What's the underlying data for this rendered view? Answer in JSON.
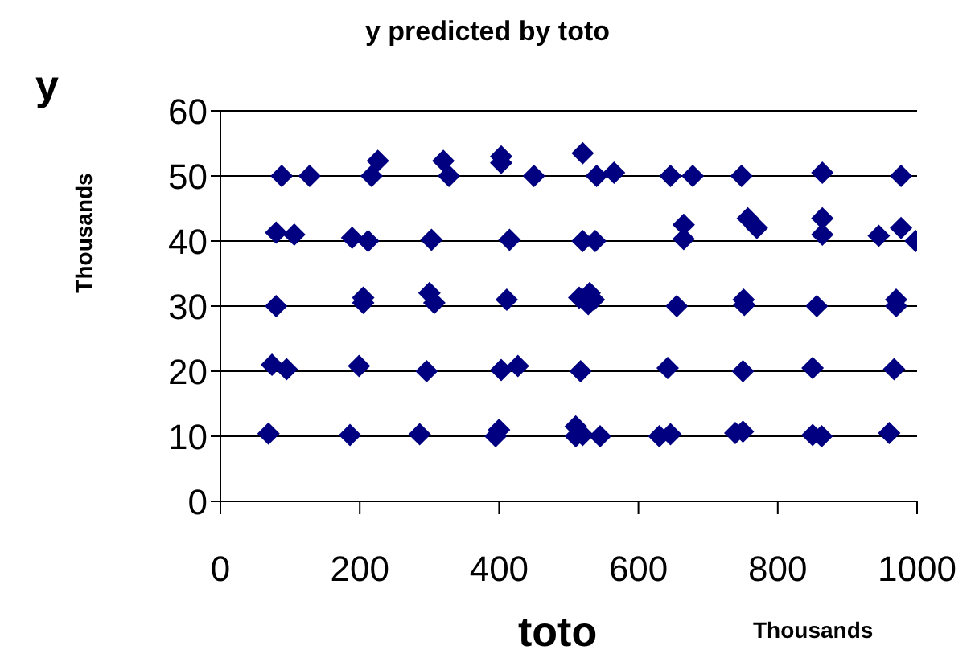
{
  "chart_data": {
    "type": "scatter",
    "title": "y predicted by toto",
    "xlabel": "toto",
    "ylabel": "y",
    "annotations": [
      "Thousands",
      "Thousands"
    ],
    "x": [
      88,
      128,
      217,
      226,
      320,
      328,
      403,
      403,
      450,
      520,
      540,
      565,
      646,
      678,
      748,
      864,
      977,
      80,
      106,
      189,
      212,
      303,
      415,
      520,
      538,
      665,
      665,
      757,
      770,
      864,
      864,
      945,
      977,
      998,
      80,
      205,
      205,
      300,
      307,
      411,
      515,
      530,
      528,
      536,
      655,
      751,
      752,
      856,
      970,
      970,
      74,
      95,
      199,
      296,
      403,
      427,
      517,
      642,
      750,
      850,
      967,
      69,
      186,
      286,
      395,
      400,
      510,
      510,
      520,
      545,
      630,
      646,
      739,
      750,
      850,
      863,
      960
    ],
    "series": [
      {
        "color": "#000080",
        "values": [
          50,
          50,
          50,
          52.3,
          52.3,
          50,
          53,
          52,
          50,
          53.5,
          50,
          50.5,
          50,
          50,
          50,
          50.5,
          50,
          41.3,
          41,
          40.5,
          40,
          40.2,
          40.2,
          40,
          40,
          42.5,
          40.3,
          43.5,
          42,
          43.5,
          41,
          40.8,
          42,
          40,
          30,
          31.3,
          30.5,
          32,
          30.5,
          31,
          31.3,
          32,
          30.3,
          31,
          30,
          31,
          30.2,
          30,
          31,
          30,
          21,
          20.3,
          20.8,
          20,
          20.2,
          20.8,
          20,
          20.5,
          20,
          20.5,
          20.3,
          10.4,
          10.2,
          10.3,
          10,
          11,
          11.5,
          10,
          10.2,
          10,
          10,
          10.3,
          10.5,
          10.7,
          10.2,
          10,
          10.5
        ]
      }
    ],
    "xlim": [
      0,
      1000
    ],
    "xticks": [
      0,
      200,
      400,
      600,
      800,
      1000
    ],
    "ylim": [
      0,
      60
    ],
    "yticks": [
      0,
      10,
      20,
      30,
      40,
      50,
      60
    ],
    "grid": "y",
    "marker": "diamond",
    "legend": false
  }
}
